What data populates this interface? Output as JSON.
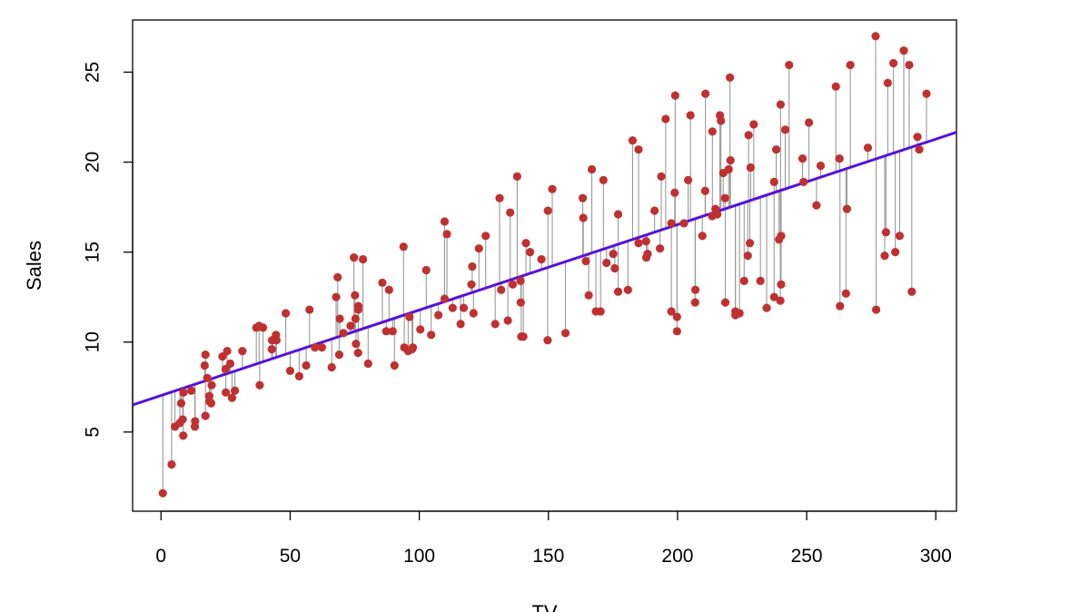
{
  "chart_data": {
    "type": "scatter",
    "title": "",
    "xlabel": "TV",
    "ylabel": "Sales",
    "xlim": [
      -11,
      308
    ],
    "ylim": [
      0.6,
      27.9
    ],
    "xticks": [
      0,
      50,
      100,
      150,
      200,
      250,
      300
    ],
    "yticks": [
      5,
      10,
      15,
      20,
      25
    ],
    "grid": false,
    "legend": "none",
    "regression_line": {
      "intercept": 7.03,
      "slope": 0.0475,
      "color": "#5511dd"
    },
    "point_color": "#c03030",
    "residual_color": "#999999",
    "points": [
      [
        0.7,
        1.6
      ],
      [
        4.1,
        3.2
      ],
      [
        5.4,
        5.3
      ],
      [
        7.3,
        5.5
      ],
      [
        7.8,
        6.6
      ],
      [
        8.4,
        5.7
      ],
      [
        8.6,
        4.8
      ],
      [
        8.7,
        7.2
      ],
      [
        11.7,
        7.3
      ],
      [
        13.1,
        5.3
      ],
      [
        13.2,
        5.6
      ],
      [
        16.9,
        8.7
      ],
      [
        17.2,
        5.9
      ],
      [
        17.2,
        9.3
      ],
      [
        17.9,
        8.0
      ],
      [
        18.7,
        7.0
      ],
      [
        18.8,
        6.7
      ],
      [
        19.4,
        6.6
      ],
      [
        19.6,
        7.6
      ],
      [
        23.8,
        9.2
      ],
      [
        25.0,
        8.5
      ],
      [
        25.1,
        7.2
      ],
      [
        25.6,
        9.5
      ],
      [
        26.8,
        8.8
      ],
      [
        27.5,
        6.9
      ],
      [
        28.6,
        7.3
      ],
      [
        31.5,
        9.5
      ],
      [
        36.9,
        10.8
      ],
      [
        38.0,
        10.9
      ],
      [
        38.2,
        7.6
      ],
      [
        39.5,
        10.8
      ],
      [
        42.9,
        9.6
      ],
      [
        43.0,
        10.1
      ],
      [
        43.1,
        10.1
      ],
      [
        44.5,
        10.4
      ],
      [
        44.7,
        10.1
      ],
      [
        48.3,
        11.6
      ],
      [
        50.0,
        8.4
      ],
      [
        53.5,
        8.1
      ],
      [
        56.2,
        8.7
      ],
      [
        57.5,
        11.8
      ],
      [
        59.6,
        9.7
      ],
      [
        62.3,
        9.7
      ],
      [
        66.1,
        8.6
      ],
      [
        67.8,
        12.5
      ],
      [
        68.4,
        13.6
      ],
      [
        69.0,
        9.3
      ],
      [
        69.2,
        11.3
      ],
      [
        70.6,
        10.5
      ],
      [
        73.4,
        10.9
      ],
      [
        74.7,
        14.7
      ],
      [
        75.1,
        12.6
      ],
      [
        75.3,
        11.3
      ],
      [
        75.5,
        9.9
      ],
      [
        76.3,
        9.4
      ],
      [
        76.4,
        12.0
      ],
      [
        76.4,
        11.8
      ],
      [
        78.2,
        14.6
      ],
      [
        80.2,
        8.8
      ],
      [
        85.7,
        13.3
      ],
      [
        87.2,
        10.6
      ],
      [
        88.3,
        12.9
      ],
      [
        89.7,
        10.6
      ],
      [
        90.4,
        8.7
      ],
      [
        93.9,
        15.3
      ],
      [
        94.2,
        9.7
      ],
      [
        95.7,
        9.5
      ],
      [
        96.2,
        11.4
      ],
      [
        97.2,
        9.6
      ],
      [
        97.5,
        9.7
      ],
      [
        100.4,
        10.7
      ],
      [
        102.7,
        14.0
      ],
      [
        104.6,
        10.4
      ],
      [
        107.4,
        11.5
      ],
      [
        109.8,
        12.4
      ],
      [
        109.8,
        16.7
      ],
      [
        110.7,
        16.0
      ],
      [
        112.9,
        11.9
      ],
      [
        116.0,
        11.0
      ],
      [
        117.2,
        11.9
      ],
      [
        120.2,
        13.2
      ],
      [
        120.5,
        14.2
      ],
      [
        121.0,
        11.6
      ],
      [
        123.1,
        15.2
      ],
      [
        125.7,
        15.9
      ],
      [
        129.4,
        11.0
      ],
      [
        131.1,
        18.0
      ],
      [
        131.7,
        12.9
      ],
      [
        134.3,
        11.2
      ],
      [
        135.2,
        17.2
      ],
      [
        136.2,
        13.2
      ],
      [
        137.9,
        19.2
      ],
      [
        139.2,
        13.4
      ],
      [
        139.3,
        12.2
      ],
      [
        139.5,
        10.3
      ],
      [
        140.3,
        10.3
      ],
      [
        141.3,
        15.5
      ],
      [
        142.9,
        15.0
      ],
      [
        147.3,
        14.6
      ],
      [
        149.7,
        10.1
      ],
      [
        149.8,
        17.3
      ],
      [
        151.5,
        18.5
      ],
      [
        156.6,
        10.5
      ],
      [
        163.3,
        18.0
      ],
      [
        163.5,
        16.9
      ],
      [
        164.5,
        14.5
      ],
      [
        165.6,
        12.6
      ],
      [
        166.8,
        19.6
      ],
      [
        168.4,
        11.7
      ],
      [
        170.2,
        11.7
      ],
      [
        171.3,
        19.0
      ],
      [
        172.5,
        14.4
      ],
      [
        175.1,
        14.9
      ],
      [
        175.7,
        14.1
      ],
      [
        177.0,
        12.8
      ],
      [
        177.0,
        17.1
      ],
      [
        180.8,
        12.9
      ],
      [
        182.6,
        21.2
      ],
      [
        184.9,
        15.5
      ],
      [
        184.9,
        20.7
      ],
      [
        187.8,
        15.6
      ],
      [
        187.9,
        14.7
      ],
      [
        188.4,
        14.9
      ],
      [
        191.1,
        17.3
      ],
      [
        193.2,
        15.2
      ],
      [
        193.7,
        19.2
      ],
      [
        195.4,
        22.4
      ],
      [
        197.6,
        11.7
      ],
      [
        197.6,
        16.6
      ],
      [
        198.9,
        18.3
      ],
      [
        199.1,
        23.7
      ],
      [
        199.8,
        10.6
      ],
      [
        199.8,
        11.4
      ],
      [
        202.5,
        16.6
      ],
      [
        204.1,
        19.0
      ],
      [
        205.0,
        22.6
      ],
      [
        206.8,
        12.2
      ],
      [
        206.9,
        12.9
      ],
      [
        209.6,
        15.9
      ],
      [
        210.7,
        18.4
      ],
      [
        210.8,
        23.8
      ],
      [
        213.4,
        17.0
      ],
      [
        213.5,
        21.7
      ],
      [
        214.7,
        17.4
      ],
      [
        215.4,
        17.1
      ],
      [
        216.4,
        22.6
      ],
      [
        216.8,
        22.3
      ],
      [
        217.7,
        19.4
      ],
      [
        218.4,
        18.0
      ],
      [
        218.5,
        12.2
      ],
      [
        219.8,
        19.6
      ],
      [
        220.3,
        24.7
      ],
      [
        220.5,
        20.1
      ],
      [
        222.4,
        11.7
      ],
      [
        222.4,
        11.5
      ],
      [
        224.0,
        11.6
      ],
      [
        225.8,
        13.4
      ],
      [
        227.2,
        14.8
      ],
      [
        227.5,
        21.5
      ],
      [
        228.0,
        15.5
      ],
      [
        228.3,
        19.7
      ],
      [
        229.5,
        22.1
      ],
      [
        232.1,
        13.4
      ],
      [
        234.5,
        11.9
      ],
      [
        237.4,
        12.5
      ],
      [
        237.4,
        18.9
      ],
      [
        238.2,
        20.7
      ],
      [
        239.3,
        15.7
      ],
      [
        239.8,
        12.3
      ],
      [
        239.9,
        23.2
      ],
      [
        240.1,
        13.2
      ],
      [
        240.1,
        15.9
      ],
      [
        241.7,
        21.8
      ],
      [
        243.2,
        25.4
      ],
      [
        248.4,
        20.2
      ],
      [
        248.8,
        18.9
      ],
      [
        250.9,
        22.2
      ],
      [
        253.8,
        17.6
      ],
      [
        255.4,
        19.8
      ],
      [
        261.3,
        24.2
      ],
      [
        262.7,
        20.2
      ],
      [
        262.9,
        12.0
      ],
      [
        265.2,
        12.7
      ],
      [
        265.6,
        17.4
      ],
      [
        266.9,
        25.4
      ],
      [
        273.7,
        20.8
      ],
      [
        276.7,
        27.0
      ],
      [
        276.9,
        11.8
      ],
      [
        280.2,
        14.8
      ],
      [
        280.7,
        16.1
      ],
      [
        281.4,
        24.4
      ],
      [
        283.6,
        25.5
      ],
      [
        284.3,
        15.0
      ],
      [
        286.0,
        15.9
      ],
      [
        287.6,
        26.2
      ],
      [
        289.7,
        25.4
      ],
      [
        290.7,
        12.8
      ],
      [
        292.9,
        21.4
      ],
      [
        293.6,
        20.7
      ],
      [
        296.4,
        23.8
      ]
    ]
  }
}
